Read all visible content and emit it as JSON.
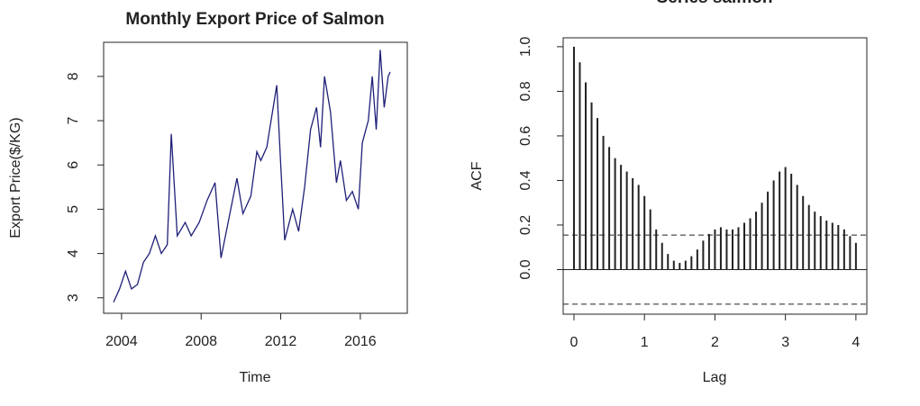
{
  "chart_data": [
    {
      "type": "line",
      "title": "Monthly Export Price of Salmon",
      "x_label": "Time",
      "y_label": "Export Price($/KG)",
      "color": "#1f1f78",
      "x": [
        2003.6,
        2003.9,
        2004.2,
        2004.5,
        2004.8,
        2005.1,
        2005.4,
        2005.7,
        2006.0,
        2006.3,
        2006.5,
        2006.8,
        2007.2,
        2007.5,
        2007.9,
        2008.3,
        2008.7,
        2009.0,
        2009.4,
        2009.8,
        2010.1,
        2010.5,
        2010.8,
        2011.0,
        2011.3,
        2011.8,
        2012.0,
        2012.2,
        2012.6,
        2012.9,
        2013.2,
        2013.5,
        2013.8,
        2014.0,
        2014.2,
        2014.5,
        2014.8,
        2015.0,
        2015.3,
        2015.6,
        2015.9,
        2016.1,
        2016.4,
        2016.6,
        2016.8,
        2017.0,
        2017.2,
        2017.4,
        2017.5
      ],
      "values": [
        2.9,
        3.2,
        3.6,
        3.2,
        3.3,
        3.8,
        4.0,
        4.4,
        4.0,
        4.2,
        6.7,
        4.4,
        4.7,
        4.4,
        4.7,
        5.2,
        5.6,
        3.9,
        4.8,
        5.7,
        4.9,
        5.3,
        6.3,
        6.1,
        6.4,
        7.8,
        6.0,
        4.3,
        5.0,
        4.5,
        5.5,
        6.8,
        7.3,
        6.4,
        8.0,
        7.2,
        5.6,
        6.1,
        5.2,
        5.4,
        5.0,
        6.5,
        7.0,
        8.0,
        6.8,
        8.6,
        7.3,
        8.0,
        8.1
      ],
      "xlim": [
        2003.1,
        2018.36
      ],
      "xticks": [
        2004,
        2008,
        2012,
        2016
      ],
      "ylim": [
        2.65,
        8.77
      ],
      "yticks": [
        3,
        4,
        5,
        6,
        7,
        8
      ]
    },
    {
      "type": "bar",
      "title": "Series salmon",
      "x_label": "Lag",
      "y_label": "ACF",
      "color": "#222222",
      "conf_limits": [
        0.155,
        -0.155
      ],
      "x": [
        0,
        0.0833,
        0.1667,
        0.25,
        0.3333,
        0.4167,
        0.5,
        0.5833,
        0.6667,
        0.75,
        0.8333,
        0.9167,
        1,
        1.0833,
        1.1667,
        1.25,
        1.3333,
        1.4167,
        1.5,
        1.5833,
        1.6667,
        1.75,
        1.8333,
        1.9167,
        2,
        2.0833,
        2.1667,
        2.25,
        2.3333,
        2.4167,
        2.5,
        2.5833,
        2.6667,
        2.75,
        2.8333,
        2.9167,
        3,
        3.0833,
        3.1667,
        3.25,
        3.3333,
        3.4167,
        3.5,
        3.5833,
        3.6667,
        3.75,
        3.8333,
        3.9167,
        4
      ],
      "values": [
        1.0,
        0.93,
        0.84,
        0.75,
        0.68,
        0.6,
        0.55,
        0.5,
        0.47,
        0.44,
        0.41,
        0.38,
        0.33,
        0.27,
        0.18,
        0.12,
        0.07,
        0.04,
        0.03,
        0.04,
        0.06,
        0.09,
        0.13,
        0.16,
        0.18,
        0.19,
        0.18,
        0.18,
        0.19,
        0.21,
        0.23,
        0.26,
        0.3,
        0.35,
        0.4,
        0.44,
        0.46,
        0.43,
        0.38,
        0.33,
        0.29,
        0.26,
        0.24,
        0.22,
        0.21,
        0.2,
        0.18,
        0.15,
        0.12
      ],
      "xlim": [
        -0.153,
        4.155
      ],
      "xticks": [
        0,
        1,
        2,
        3,
        4
      ],
      "ylim": [
        -0.2,
        1.04
      ],
      "yticks": [
        {
          "value": 0,
          "label": "0.0"
        },
        {
          "value": 0.2,
          "label": "0.2"
        },
        {
          "value": 0.4,
          "label": "0.4"
        },
        {
          "value": 0.6,
          "label": "0.6"
        },
        {
          "value": 0.8,
          "label": "0.8"
        },
        {
          "value": 1,
          "label": "1.0"
        }
      ]
    }
  ]
}
